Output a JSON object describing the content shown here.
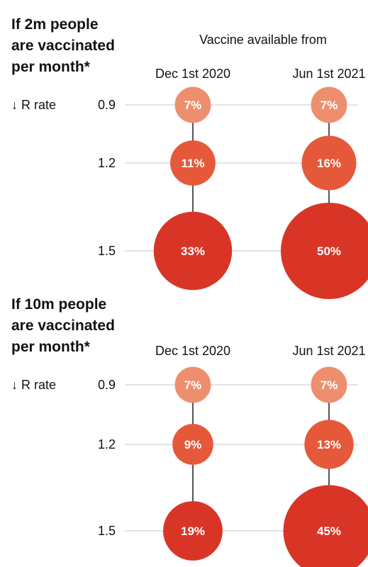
{
  "chart_data": [
    {
      "type": "bubble",
      "title_lines": [
        "If 2m people",
        "are vaccinated",
        "per month*"
      ],
      "column_header": "Vaccine available from",
      "row_axis_label": "↓ R rate",
      "columns": [
        "Dec 1st 2020",
        "Jun 1st 2021"
      ],
      "rows": [
        "0.9",
        "1.2",
        "1.5"
      ],
      "series": [
        {
          "name": "Dec 1st 2020",
          "values": [
            7,
            11,
            33
          ],
          "labels": [
            "7%",
            "11%",
            "33%"
          ]
        },
        {
          "name": "Jun 1st 2021",
          "values": [
            7,
            16,
            50
          ],
          "labels": [
            "7%",
            "16%",
            "50%"
          ]
        }
      ]
    },
    {
      "type": "bubble",
      "title_lines": [
        "If 10m people",
        "are vaccinated",
        "per month*"
      ],
      "column_header": "",
      "row_axis_label": "↓ R rate",
      "columns": [
        "Dec 1st 2020",
        "Jun 1st 2021"
      ],
      "rows": [
        "0.9",
        "1.2",
        "1.5"
      ],
      "series": [
        {
          "name": "Dec 1st 2020",
          "values": [
            7,
            9,
            19
          ],
          "labels": [
            "7%",
            "9%",
            "19%"
          ]
        },
        {
          "name": "Jun 1st 2021",
          "values": [
            7,
            13,
            45
          ],
          "labels": [
            "7%",
            "13%",
            "45%"
          ]
        }
      ]
    }
  ],
  "colors": {
    "light": "#ed8f6e",
    "mid": "#e5593a",
    "dark": "#d93526",
    "gridline": "#d9d9d9",
    "connector": "#555555"
  }
}
